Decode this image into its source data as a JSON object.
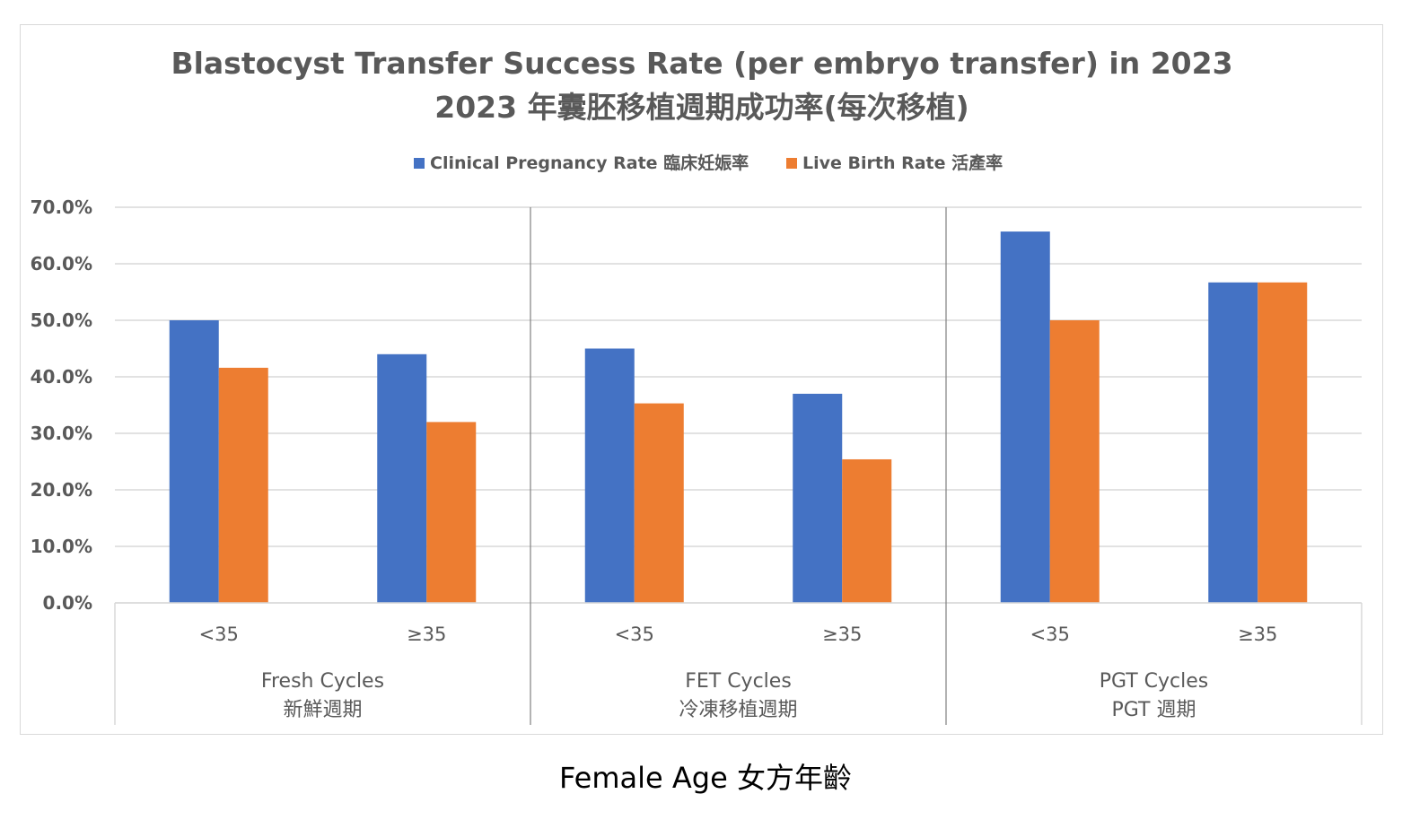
{
  "chart_data": {
    "type": "bar",
    "title_lines": [
      "Blastocyst Transfer Success Rate (per embryo transfer) in 2023",
      "2023 年囊胚移植週期成功率(每次移植)"
    ],
    "legend": {
      "placement": "top"
    },
    "series": [
      {
        "name": "Clinical Pregnancy Rate 臨床妊娠率",
        "color": "#4472c4",
        "values": [
          50.0,
          44.0,
          45.0,
          37.0,
          65.7,
          56.7
        ]
      },
      {
        "name": "Live Birth Rate 活產率",
        "color": "#ed7d31",
        "values": [
          41.6,
          32.0,
          35.3,
          25.4,
          50.0,
          56.7
        ]
      }
    ],
    "categories": [
      "<35",
      "≥35",
      "<35",
      "≥35",
      "<35",
      "≥35"
    ],
    "groups": [
      {
        "label_en": "Fresh Cycles",
        "label_zh": "新鮮週期",
        "count": 2
      },
      {
        "label_en": "FET Cycles",
        "label_zh": "冷凍移植週期",
        "count": 2
      },
      {
        "label_en": "PGT Cycles",
        "label_zh": "PGT 週期",
        "count": 2
      }
    ],
    "yticks": [
      "0.0%",
      "10.0%",
      "20.0%",
      "30.0%",
      "40.0%",
      "50.0%",
      "60.0%",
      "70.0%"
    ],
    "ylim": [
      0,
      70
    ],
    "grid": true,
    "xlabel": "Female Age 女方年齡"
  }
}
